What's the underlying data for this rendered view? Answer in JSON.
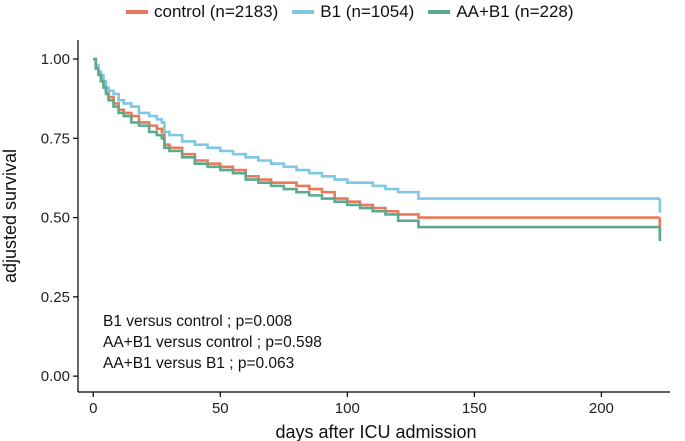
{
  "chart_data": {
    "type": "line",
    "step": true,
    "xlabel": "days after ICU admission",
    "ylabel": "adjusted survival",
    "xlim": [
      -6,
      227
    ],
    "ylim": [
      -0.05,
      1.06
    ],
    "xticks": [
      0,
      50,
      100,
      150,
      200
    ],
    "xtick_labels": [
      "0",
      "50",
      "100",
      "150",
      "200"
    ],
    "yticks": [
      0,
      0.25,
      0.5,
      0.75,
      1.0
    ],
    "ytick_labels": [
      "0.00",
      "0.25",
      "0.50",
      "0.75",
      "1.00"
    ],
    "grid": false,
    "legend_position": "top",
    "series": [
      {
        "name": "control (n=2183)",
        "color": "#E8795A",
        "x": [
          0,
          1,
          2,
          3,
          4,
          5,
          6,
          8,
          10,
          12,
          15,
          18,
          22,
          25,
          27,
          28,
          30,
          35,
          40,
          45,
          50,
          55,
          60,
          65,
          70,
          75,
          80,
          85,
          90,
          95,
          100,
          105,
          110,
          115,
          120,
          128,
          150,
          180,
          200,
          223
        ],
        "y": [
          1.0,
          0.98,
          0.96,
          0.94,
          0.92,
          0.9,
          0.88,
          0.86,
          0.84,
          0.83,
          0.82,
          0.8,
          0.79,
          0.78,
          0.77,
          0.73,
          0.72,
          0.7,
          0.68,
          0.67,
          0.66,
          0.65,
          0.63,
          0.62,
          0.61,
          0.61,
          0.6,
          0.59,
          0.58,
          0.56,
          0.55,
          0.54,
          0.53,
          0.52,
          0.51,
          0.5,
          0.5,
          0.5,
          0.5,
          0.5
        ]
      },
      {
        "name": "B1 (n=1054)",
        "color": "#7EC8E3",
        "x": [
          0,
          1,
          2,
          3,
          4,
          5,
          6,
          8,
          10,
          12,
          15,
          18,
          22,
          25,
          27,
          28,
          30,
          35,
          40,
          45,
          50,
          55,
          60,
          65,
          70,
          75,
          80,
          85,
          90,
          95,
          100,
          105,
          110,
          115,
          120,
          128,
          150,
          180,
          200,
          223
        ],
        "y": [
          1.0,
          0.98,
          0.96,
          0.95,
          0.93,
          0.91,
          0.9,
          0.89,
          0.87,
          0.86,
          0.85,
          0.83,
          0.82,
          0.81,
          0.8,
          0.77,
          0.76,
          0.74,
          0.73,
          0.72,
          0.71,
          0.7,
          0.69,
          0.68,
          0.67,
          0.66,
          0.65,
          0.64,
          0.63,
          0.62,
          0.61,
          0.61,
          0.6,
          0.59,
          0.58,
          0.56,
          0.56,
          0.56,
          0.56,
          0.56
        ]
      },
      {
        "name": "AA+B1 (n=228)",
        "color": "#5BAA8E",
        "x": [
          0,
          1,
          2,
          3,
          4,
          5,
          6,
          8,
          10,
          12,
          15,
          18,
          22,
          25,
          27,
          28,
          30,
          35,
          40,
          45,
          50,
          55,
          60,
          65,
          70,
          75,
          80,
          85,
          90,
          95,
          100,
          105,
          110,
          115,
          120,
          128,
          150,
          180,
          200,
          223
        ],
        "y": [
          1.0,
          0.97,
          0.95,
          0.93,
          0.91,
          0.89,
          0.87,
          0.85,
          0.83,
          0.82,
          0.8,
          0.79,
          0.77,
          0.76,
          0.75,
          0.72,
          0.71,
          0.69,
          0.67,
          0.66,
          0.65,
          0.64,
          0.62,
          0.61,
          0.6,
          0.59,
          0.58,
          0.57,
          0.56,
          0.55,
          0.54,
          0.53,
          0.52,
          0.51,
          0.49,
          0.47,
          0.47,
          0.47,
          0.47,
          0.47
        ]
      }
    ],
    "annotations": [
      "B1 versus control ; p=0.008",
      "AA+B1 versus control ; p=0.598",
      "AA+B1 versus B1 ; p=0.063"
    ]
  }
}
